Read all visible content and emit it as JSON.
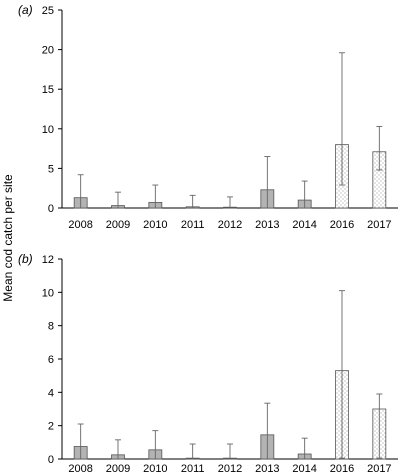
{
  "ylabel": "Mean cod catch per site",
  "colors": {
    "solid": "#b3b3b3",
    "dotted_bg": "#ffffff",
    "dot": "#7a7a7a",
    "stroke": "#555555",
    "axis": "#000000",
    "errorbar": "#666666"
  },
  "chart_data": [
    {
      "type": "bar",
      "panel_label": "(a)",
      "categories": [
        "2008",
        "2009",
        "2010",
        "2011",
        "2012",
        "2013",
        "2014",
        "2016",
        "2017"
      ],
      "values": [
        1.3,
        0.3,
        0.7,
        0.15,
        0.05,
        2.3,
        1.0,
        8.0,
        7.1
      ],
      "error_low": [
        0,
        0,
        0,
        0,
        0,
        0,
        0,
        2.9,
        4.8
      ],
      "error_high": [
        4.2,
        2.0,
        2.9,
        1.6,
        1.4,
        6.5,
        3.4,
        19.6,
        10.3
      ],
      "fill": [
        "solid",
        "solid",
        "solid",
        "solid",
        "solid",
        "solid",
        "solid",
        "dotted",
        "dotted"
      ],
      "ylim": [
        0,
        25
      ],
      "yticks": [
        0,
        5,
        10,
        15,
        20,
        25
      ],
      "xlabel": "",
      "ylabel": "Mean cod catch per site"
    },
    {
      "type": "bar",
      "panel_label": "(b)",
      "categories": [
        "2008",
        "2009",
        "2010",
        "2011",
        "2012",
        "2013",
        "2014",
        "2016",
        "2017"
      ],
      "values": [
        0.75,
        0.25,
        0.55,
        0.05,
        0.05,
        1.45,
        0.3,
        5.3,
        3.0
      ],
      "error_low": [
        0,
        0,
        0,
        0,
        0,
        0,
        0,
        0.05,
        0.05
      ],
      "error_high": [
        2.1,
        1.15,
        1.7,
        0.9,
        0.9,
        3.35,
        1.25,
        10.1,
        3.9
      ],
      "fill": [
        "solid",
        "solid",
        "solid",
        "solid",
        "solid",
        "solid",
        "solid",
        "dotted",
        "dotted"
      ],
      "ylim": [
        0,
        12
      ],
      "yticks": [
        0,
        2,
        4,
        6,
        8,
        10,
        12
      ],
      "xlabel": "",
      "ylabel": "Mean cod catch per site"
    }
  ]
}
